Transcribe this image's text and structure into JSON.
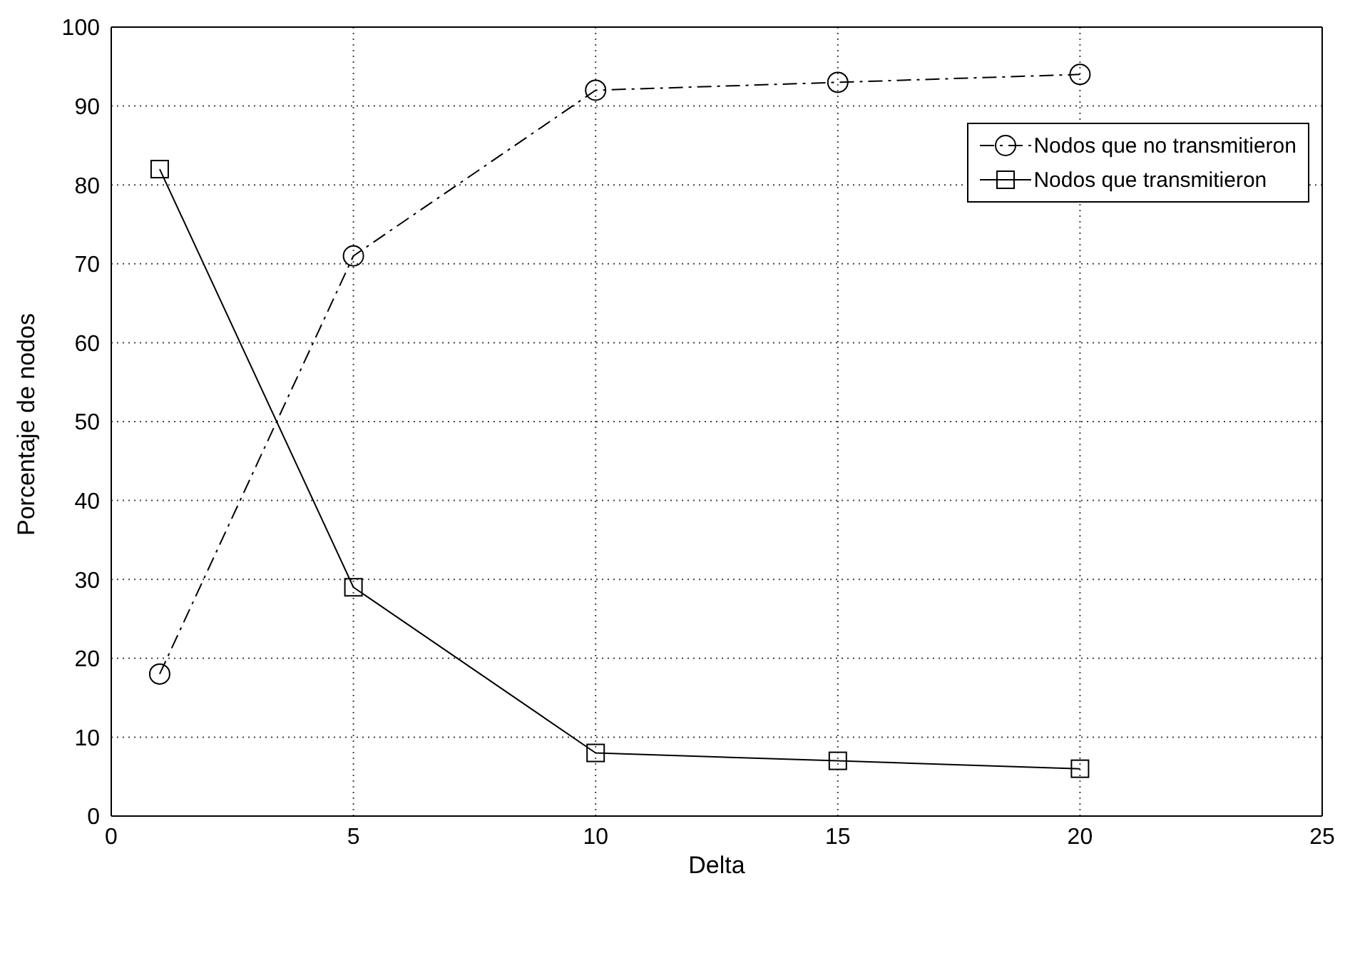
{
  "chart_data": {
    "type": "line",
    "xlabel": "Delta",
    "ylabel": "Porcentaje de nodos",
    "x": [
      1,
      5,
      10,
      15,
      20
    ],
    "xlim": [
      0,
      25
    ],
    "xticks": [
      0,
      5,
      10,
      15,
      20,
      25
    ],
    "ylim": [
      0,
      100
    ],
    "yticks": [
      0,
      10,
      20,
      30,
      40,
      50,
      60,
      70,
      80,
      90,
      100
    ],
    "grid": true,
    "legend": "top right",
    "series": [
      {
        "name": "Nodos que no transmitieron",
        "color": "#000000",
        "values": [
          18,
          71,
          92,
          93,
          94
        ],
        "marker": "circle",
        "line_style": "dashed"
      },
      {
        "name": "Nodos que transmitieron",
        "color": "#000000",
        "values": [
          82,
          29,
          8,
          7,
          6
        ],
        "marker": "square",
        "line_style": "solid"
      }
    ]
  }
}
